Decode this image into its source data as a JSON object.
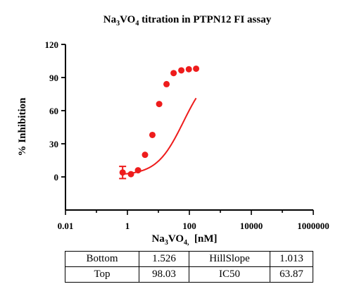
{
  "chart_data": {
    "type": "scatter",
    "title_parts": [
      "Na",
      "3",
      "VO",
      "4",
      " titration in PTPN12 FI assay"
    ],
    "xlabel_parts": [
      "Na",
      "3",
      "VO",
      "4,",
      "  [nM]"
    ],
    "ylabel": "% Inhibition",
    "x_scale": "log",
    "xlim": [
      0.01,
      1000000
    ],
    "ylim": [
      -30,
      120
    ],
    "x_ticks": [
      0.01,
      1,
      100,
      10000,
      1000000
    ],
    "x_tick_labels": [
      "0.01",
      "1",
      "100",
      "10000",
      "1000000"
    ],
    "y_ticks": [
      0,
      30,
      60,
      90,
      120
    ],
    "y_tick_labels": [
      "0",
      "30",
      "60",
      "90",
      "120"
    ],
    "series": [
      {
        "color": "#ee1c1c",
        "points": [
          {
            "x": 0.7,
            "y": 4,
            "err": 5.5
          },
          {
            "x": 1.3,
            "y": 2.5
          },
          {
            "x": 2.2,
            "y": 6
          },
          {
            "x": 3.7,
            "y": 20
          },
          {
            "x": 6.4,
            "y": 38
          },
          {
            "x": 10.6,
            "y": 66
          },
          {
            "x": 18.3,
            "y": 84
          },
          {
            "x": 31,
            "y": 94
          },
          {
            "x": 55,
            "y": 96.5
          },
          {
            "x": 96,
            "y": 97.5
          },
          {
            "x": 165,
            "y": 98
          }
        ],
        "fit": {
          "model": "4PL",
          "bottom": 1.526,
          "top": 98.03,
          "hillslope": 1.013,
          "ic50": 63.87,
          "x_start": 0.7,
          "x_end": 165
        }
      }
    ],
    "grid": false,
    "legend": "none"
  },
  "params_table": [
    [
      "Bottom",
      "1.526",
      "HillSlope",
      "1.013"
    ],
    [
      "Top",
      "98.03",
      "IC50",
      "63.87"
    ]
  ]
}
